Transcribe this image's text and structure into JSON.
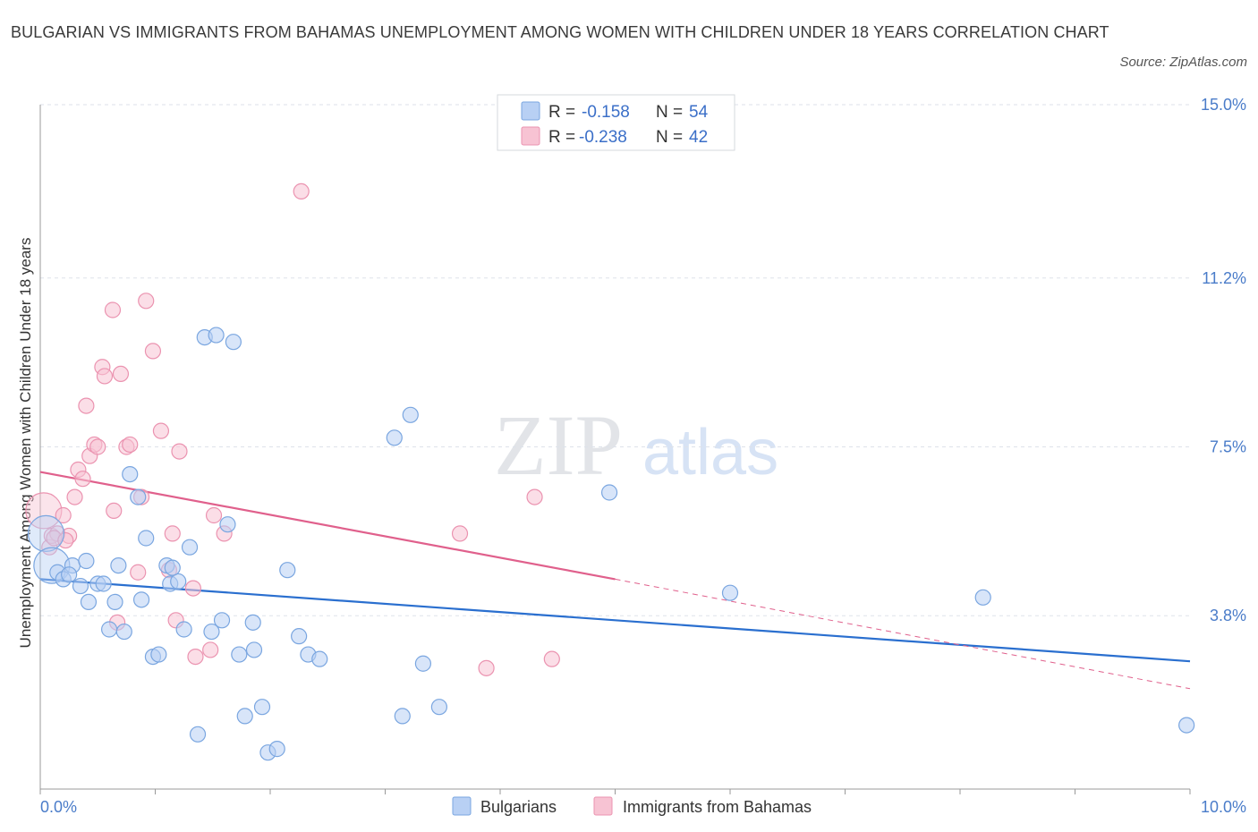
{
  "title": "BULGARIAN VS IMMIGRANTS FROM BAHAMAS UNEMPLOYMENT AMONG WOMEN WITH CHILDREN UNDER 18 YEARS CORRELATION CHART",
  "source": "Source: ZipAtlas.com",
  "watermark": {
    "zip": "ZIP",
    "atlas": "atlas"
  },
  "colors": {
    "blue_fill": "#b8d0f4",
    "blue_stroke": "#7aa6e0",
    "blue_line": "#2a6fcf",
    "pink_fill": "#f7c3d3",
    "pink_stroke": "#eb93b0",
    "pink_line": "#e0608c",
    "grid": "#dde2ea",
    "axis_label": "#4a7cc9"
  },
  "legend": {
    "row1": {
      "r_label": "R =",
      "r_value": "-0.158",
      "n_label": "N =",
      "n_value": "54"
    },
    "row2": {
      "r_label": "R =",
      "r_value": "-0.238",
      "n_label": "N =",
      "n_value": "42"
    }
  },
  "chart_data": {
    "type": "scatter",
    "xlabel": "",
    "ylabel": "Unemployment Among Women with Children Under 18 years",
    "xlim": [
      0,
      10
    ],
    "ylim": [
      0,
      15
    ],
    "x_tick_labels": [
      "0.0%",
      "10.0%"
    ],
    "y_ticks": [
      3.8,
      7.5,
      11.2,
      15.0
    ],
    "y_tick_labels": [
      "3.8%",
      "7.5%",
      "11.2%",
      "15.0%"
    ],
    "series": [
      {
        "name": "Bulgarians",
        "trend": {
          "x": [
            0,
            10
          ],
          "y": [
            4.6,
            2.8
          ],
          "dashed_extension": false
        },
        "points": [
          {
            "x": 0.05,
            "y": 5.6,
            "big": true
          },
          {
            "x": 0.1,
            "y": 4.9,
            "big": true
          },
          {
            "x": 0.15,
            "y": 4.75
          },
          {
            "x": 0.2,
            "y": 4.6
          },
          {
            "x": 0.28,
            "y": 4.9
          },
          {
            "x": 0.35,
            "y": 4.45
          },
          {
            "x": 0.4,
            "y": 5.0
          },
          {
            "x": 0.42,
            "y": 4.1
          },
          {
            "x": 0.5,
            "y": 4.5
          },
          {
            "x": 0.55,
            "y": 4.5
          },
          {
            "x": 0.6,
            "y": 3.5
          },
          {
            "x": 0.65,
            "y": 4.1
          },
          {
            "x": 0.68,
            "y": 4.9
          },
          {
            "x": 0.73,
            "y": 3.45
          },
          {
            "x": 0.78,
            "y": 6.9
          },
          {
            "x": 0.85,
            "y": 6.4
          },
          {
            "x": 0.88,
            "y": 4.15
          },
          {
            "x": 0.92,
            "y": 5.5
          },
          {
            "x": 0.98,
            "y": 2.9
          },
          {
            "x": 1.03,
            "y": 2.95
          },
          {
            "x": 1.1,
            "y": 4.9
          },
          {
            "x": 1.13,
            "y": 4.5
          },
          {
            "x": 1.2,
            "y": 4.55
          },
          {
            "x": 1.25,
            "y": 3.5
          },
          {
            "x": 1.3,
            "y": 5.3
          },
          {
            "x": 1.37,
            "y": 1.2
          },
          {
            "x": 1.43,
            "y": 9.9
          },
          {
            "x": 1.53,
            "y": 9.95
          },
          {
            "x": 1.58,
            "y": 3.7
          },
          {
            "x": 1.63,
            "y": 5.8
          },
          {
            "x": 1.68,
            "y": 9.8
          },
          {
            "x": 1.73,
            "y": 2.95
          },
          {
            "x": 1.78,
            "y": 1.6
          },
          {
            "x": 1.85,
            "y": 3.65
          },
          {
            "x": 1.86,
            "y": 3.05
          },
          {
            "x": 1.93,
            "y": 1.8
          },
          {
            "x": 1.98,
            "y": 0.8
          },
          {
            "x": 2.06,
            "y": 0.88
          },
          {
            "x": 2.15,
            "y": 4.8
          },
          {
            "x": 2.25,
            "y": 3.35
          },
          {
            "x": 2.33,
            "y": 2.95
          },
          {
            "x": 2.43,
            "y": 2.85
          },
          {
            "x": 3.08,
            "y": 7.7
          },
          {
            "x": 3.15,
            "y": 1.6
          },
          {
            "x": 3.22,
            "y": 8.2
          },
          {
            "x": 3.33,
            "y": 2.75
          },
          {
            "x": 3.47,
            "y": 1.8
          },
          {
            "x": 4.95,
            "y": 6.5
          },
          {
            "x": 6.0,
            "y": 4.3
          },
          {
            "x": 8.2,
            "y": 4.2
          },
          {
            "x": 9.97,
            "y": 1.4
          },
          {
            "x": 1.49,
            "y": 3.45
          },
          {
            "x": 0.25,
            "y": 4.7
          },
          {
            "x": 1.15,
            "y": 4.85
          }
        ]
      },
      {
        "name": "Immigrants from Bahamas",
        "trend": {
          "x": [
            0,
            5.0
          ],
          "y": [
            6.95,
            4.6
          ],
          "ext_x": [
            5.0,
            10
          ],
          "ext_y": [
            4.6,
            2.2
          ],
          "dashed_extension": true
        },
        "points": [
          {
            "x": 0.03,
            "y": 6.1,
            "big": true
          },
          {
            "x": 0.08,
            "y": 5.3
          },
          {
            "x": 0.1,
            "y": 5.55
          },
          {
            "x": 0.15,
            "y": 5.6
          },
          {
            "x": 0.2,
            "y": 6.0
          },
          {
            "x": 0.25,
            "y": 5.55
          },
          {
            "x": 0.3,
            "y": 6.4
          },
          {
            "x": 0.33,
            "y": 7.0
          },
          {
            "x": 0.37,
            "y": 6.8
          },
          {
            "x": 0.4,
            "y": 8.4
          },
          {
            "x": 0.43,
            "y": 7.3
          },
          {
            "x": 0.47,
            "y": 7.55
          },
          {
            "x": 0.5,
            "y": 7.5
          },
          {
            "x": 0.54,
            "y": 9.25
          },
          {
            "x": 0.56,
            "y": 9.05
          },
          {
            "x": 0.63,
            "y": 10.5
          },
          {
            "x": 0.64,
            "y": 6.1
          },
          {
            "x": 0.67,
            "y": 3.65
          },
          {
            "x": 0.7,
            "y": 9.1
          },
          {
            "x": 0.75,
            "y": 7.5
          },
          {
            "x": 0.78,
            "y": 7.55
          },
          {
            "x": 0.85,
            "y": 4.75
          },
          {
            "x": 0.88,
            "y": 6.4
          },
          {
            "x": 0.92,
            "y": 10.7
          },
          {
            "x": 0.98,
            "y": 9.6
          },
          {
            "x": 1.05,
            "y": 7.85
          },
          {
            "x": 1.12,
            "y": 4.8
          },
          {
            "x": 1.15,
            "y": 5.6
          },
          {
            "x": 1.18,
            "y": 3.7
          },
          {
            "x": 1.21,
            "y": 7.4
          },
          {
            "x": 1.33,
            "y": 4.4
          },
          {
            "x": 1.35,
            "y": 2.9
          },
          {
            "x": 1.48,
            "y": 3.05
          },
          {
            "x": 1.51,
            "y": 6.0
          },
          {
            "x": 1.6,
            "y": 5.6
          },
          {
            "x": 2.27,
            "y": 13.1
          },
          {
            "x": 3.65,
            "y": 5.6
          },
          {
            "x": 3.88,
            "y": 2.65
          },
          {
            "x": 4.3,
            "y": 6.4
          },
          {
            "x": 4.45,
            "y": 2.85
          },
          {
            "x": 0.12,
            "y": 5.5
          },
          {
            "x": 0.22,
            "y": 5.45
          }
        ]
      }
    ],
    "legend_labels": [
      "Bulgarians",
      "Immigrants from Bahamas"
    ]
  }
}
